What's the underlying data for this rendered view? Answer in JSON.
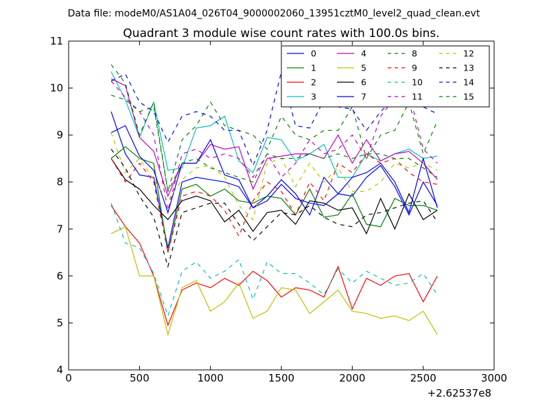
{
  "header": {
    "data_file": "Data file: modeM0/AS1A04_026T04_9000002060_13951cztM0_level2_quad_clean.evt"
  },
  "chart_data": {
    "type": "line",
    "title": "Quadrant 3 module wise count rates with 100.0s bins.",
    "xlabel": "",
    "ylabel": "",
    "x_offset_label": "+2.62537e8",
    "xlim": [
      0,
      3000
    ],
    "ylim": [
      4,
      11
    ],
    "xticks": [
      0,
      500,
      1000,
      1500,
      2000,
      2500,
      3000
    ],
    "yticks": [
      4,
      5,
      6,
      7,
      8,
      9,
      10,
      11
    ],
    "grid": false,
    "legend_position": "top-right",
    "legend_columns": 4,
    "x": [
      300,
      400,
      500,
      600,
      700,
      800,
      900,
      1000,
      1100,
      1200,
      1300,
      1400,
      1500,
      1600,
      1700,
      1800,
      1900,
      2000,
      2100,
      2200,
      2300,
      2400,
      2500,
      2600
    ],
    "series": [
      {
        "name": "0",
        "color": "#0000ff",
        "dash": "solid",
        "values": [
          9.5,
          8.6,
          8.15,
          8.1,
          6.6,
          8.0,
          8.1,
          8.05,
          8.0,
          7.9,
          7.45,
          7.7,
          8.05,
          7.75,
          7.3,
          8.1,
          7.75,
          7.7,
          8.1,
          8.35,
          7.9,
          7.3,
          8.0,
          7.5
        ]
      },
      {
        "name": "1",
        "color": "#008000",
        "dash": "solid",
        "values": [
          8.5,
          8.75,
          8.5,
          8.4,
          6.5,
          7.85,
          7.95,
          7.7,
          7.85,
          7.6,
          7.55,
          7.7,
          7.65,
          7.3,
          7.85,
          7.25,
          7.3,
          7.75,
          7.1,
          7.05,
          7.65,
          7.5,
          7.5,
          7.4
        ]
      },
      {
        "name": "2",
        "color": "#ff0000",
        "dash": "solid",
        "values": [
          7.5,
          7.05,
          6.7,
          6.0,
          4.95,
          5.7,
          5.85,
          5.75,
          5.95,
          5.8,
          6.1,
          5.9,
          5.55,
          5.75,
          5.7,
          5.55,
          6.2,
          5.3,
          5.95,
          5.8,
          6.0,
          6.05,
          5.45,
          6.0
        ]
      },
      {
        "name": "3",
        "color": "#00bfbf",
        "dash": "solid",
        "values": [
          10.35,
          9.75,
          8.95,
          9.7,
          8.25,
          8.3,
          9.15,
          9.2,
          9.4,
          8.45,
          8.2,
          8.95,
          8.9,
          8.45,
          8.6,
          8.8,
          8.1,
          8.1,
          8.6,
          8.45,
          8.6,
          8.7,
          8.5,
          8.55
        ]
      },
      {
        "name": "4",
        "color": "#bf00bf",
        "dash": "solid",
        "values": [
          10.2,
          10.05,
          8.95,
          8.65,
          7.7,
          8.4,
          8.4,
          8.8,
          8.7,
          8.75,
          7.85,
          8.5,
          8.55,
          8.6,
          8.6,
          8.5,
          9.0,
          8.4,
          8.9,
          8.45,
          8.6,
          8.65,
          8.4,
          8.05
        ]
      },
      {
        "name": "5",
        "color": "#bfbf00",
        "dash": "solid",
        "values": [
          6.9,
          7.05,
          6.0,
          6.0,
          4.75,
          5.75,
          5.9,
          5.25,
          5.45,
          5.85,
          5.1,
          5.25,
          5.75,
          5.7,
          5.2,
          5.45,
          5.7,
          5.25,
          5.2,
          5.1,
          5.15,
          5.05,
          5.25,
          4.75
        ]
      },
      {
        "name": "6",
        "color": "#000000",
        "dash": "solid",
        "values": [
          8.5,
          8.05,
          7.85,
          7.5,
          7.2,
          7.6,
          7.7,
          7.6,
          7.15,
          7.4,
          6.95,
          7.35,
          7.4,
          7.1,
          7.6,
          7.55,
          7.4,
          7.45,
          6.9,
          7.65,
          7.0,
          7.75,
          7.2,
          7.4
        ]
      },
      {
        "name": "7",
        "color": "#0000ff",
        "dash": "solid",
        "values": [
          9.05,
          9.2,
          8.55,
          8.25,
          7.35,
          8.4,
          8.4,
          8.9,
          8.15,
          8.05,
          7.45,
          7.6,
          7.95,
          7.65,
          7.55,
          7.5,
          7.75,
          8.1,
          8.2,
          8.4,
          8.0,
          7.35,
          8.5,
          7.45
        ]
      },
      {
        "name": "8",
        "color": "#008000",
        "dash": "dashed",
        "values": [
          10.5,
          10.1,
          9.0,
          9.7,
          7.8,
          8.9,
          9.2,
          9.7,
          9.2,
          9.1,
          9.0,
          8.7,
          9.4,
          9.0,
          8.9,
          9.1,
          9.1,
          9.6,
          8.5,
          9.0,
          9.1,
          9.7,
          8.6,
          9.3
        ]
      },
      {
        "name": "9",
        "color": "#ff0000",
        "dash": "dashed",
        "values": [
          8.5,
          8.0,
          8.4,
          8.0,
          6.5,
          7.7,
          7.8,
          7.7,
          7.4,
          6.85,
          7.6,
          8.0,
          7.8,
          7.3,
          8.0,
          7.6,
          8.4,
          8.2,
          8.6,
          8.4,
          8.5,
          8.2,
          8.0,
          7.95
        ]
      },
      {
        "name": "10",
        "color": "#00bfbf",
        "dash": "dashed",
        "values": [
          7.55,
          6.7,
          6.6,
          6.05,
          5.15,
          6.1,
          6.3,
          5.95,
          6.1,
          6.35,
          5.5,
          6.3,
          6.05,
          6.05,
          5.85,
          5.6,
          6.15,
          5.85,
          6.1,
          5.95,
          5.8,
          5.85,
          6.05,
          5.6
        ]
      },
      {
        "name": "11",
        "color": "#bf00bf",
        "dash": "dashed",
        "values": [
          10.15,
          9.8,
          9.5,
          9.0,
          7.4,
          8.6,
          8.7,
          8.5,
          8.6,
          8.5,
          8.1,
          8.6,
          8.1,
          8.4,
          8.9,
          8.6,
          8.7,
          9.0,
          8.5,
          9.4,
          9.8,
          9.9,
          8.7,
          8.4
        ]
      },
      {
        "name": "12",
        "color": "#bfbf00",
        "dash": "dashed",
        "values": [
          9.05,
          8.2,
          8.5,
          8.05,
          7.6,
          8.05,
          8.3,
          8.35,
          8.1,
          7.5,
          7.2,
          8.4,
          8.5,
          7.9,
          8.4,
          8.0,
          8.3,
          7.8,
          7.8,
          8.0,
          8.4,
          8.3,
          8.4,
          8.25
        ]
      },
      {
        "name": "13",
        "color": "#000000",
        "dash": "dashed",
        "values": [
          8.7,
          8.3,
          7.7,
          7.25,
          6.2,
          7.35,
          7.45,
          7.55,
          7.55,
          7.1,
          6.75,
          7.05,
          7.35,
          7.3,
          7.5,
          7.25,
          7.1,
          7.05,
          7.3,
          7.35,
          7.45,
          7.55,
          7.6,
          7.15
        ]
      },
      {
        "name": "14",
        "color": "#0000ff",
        "dash": "dashed",
        "values": [
          10.15,
          10.3,
          9.7,
          9.5,
          8.85,
          9.4,
          9.5,
          9.4,
          9.1,
          9.1,
          8.35,
          9.1,
          10.35,
          9.2,
          9.15,
          9.75,
          9.6,
          9.55,
          9.1,
          9.5,
          9.8,
          9.75,
          9.6,
          9.45
        ]
      },
      {
        "name": "15",
        "color": "#008000",
        "dash": "dashed",
        "values": [
          9.85,
          9.75,
          9.5,
          9.6,
          7.8,
          8.4,
          8.5,
          8.3,
          8.2,
          8.1,
          8.0,
          8.6,
          8.5,
          8.5,
          8.6,
          8.5,
          8.6,
          8.5,
          8.6,
          8.6,
          8.5,
          8.5,
          8.3,
          8.1
        ]
      }
    ]
  }
}
